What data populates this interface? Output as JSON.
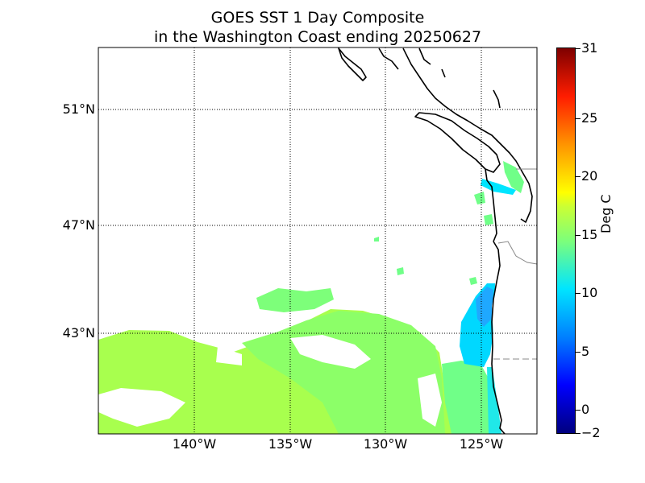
{
  "title": {
    "line1": "GOES SST 1 Day Composite",
    "line2": "in the Washington Coast ending 20250627"
  },
  "map": {
    "lat_labels": [
      "51°N",
      "47°N",
      "43°N"
    ],
    "lon_labels": [
      "140°W",
      "135°W",
      "130°W",
      "125°W"
    ]
  },
  "colorbar": {
    "unit": "Deg C",
    "tick_labels": [
      "31",
      "25",
      "20",
      "15",
      "10",
      "5",
      "0",
      "−2"
    ],
    "colors": [
      "#00007f",
      "#0000ff",
      "#0080ff",
      "#00e5ff",
      "#7dff7a",
      "#ccff33",
      "#ffff00",
      "#ff9400",
      "#ff1d00",
      "#7f0000"
    ]
  }
}
